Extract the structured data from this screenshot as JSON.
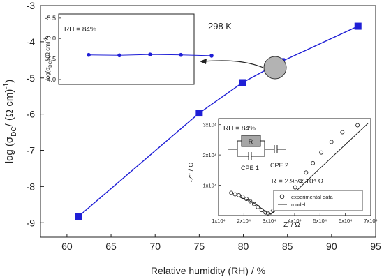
{
  "chart_data": [
    {
      "id": "main",
      "type": "line",
      "xlabel": "Relative humidity (RH) / %",
      "ylabel_parts": [
        "log (σ",
        "DC",
        "/ (Ω cm)",
        "-1",
        ")"
      ],
      "xlim": [
        57,
        95
      ],
      "ylim": [
        -9.4,
        -3
      ],
      "xticks": [
        60,
        65,
        70,
        75,
        80,
        85,
        90,
        95
      ],
      "yticks": [
        -9,
        -8,
        -7,
        -6,
        -5,
        -4,
        -3
      ],
      "series": [
        {
          "x": [
            61.3,
            75.0,
            79.9,
            84.3,
            93.0
          ],
          "y": [
            -8.83,
            -5.97,
            -5.13,
            -4.55,
            -3.57
          ],
          "color": "#1f1fd6"
        }
      ],
      "annotation": "298 K"
    },
    {
      "id": "inset_top",
      "type": "line",
      "ylabel_parts": [
        "log(σ",
        "DC",
        "/ (Ω cm)",
        "-1",
        ")"
      ],
      "note": "RH = 84%",
      "yticks": [
        "-5.5",
        "-5.0",
        "-4.5",
        "-4.0"
      ],
      "y_tick_values": [
        -5.5,
        -5.0,
        -4.5,
        -4.0
      ],
      "ylim": [
        -5.6,
        -3.88
      ],
      "reversed_y": true,
      "series": [
        {
          "x": [
            1,
            2,
            3,
            4,
            5
          ],
          "y": [
            -4.6,
            -4.59,
            -4.61,
            -4.6,
            -4.58
          ],
          "color": "#1f1fd6"
        }
      ]
    },
    {
      "id": "inset_nyquist",
      "type": "scatter",
      "xlabel": "Z' / Ω",
      "ylabel": "-Z'' / Ω",
      "note": "RH = 84%",
      "xlim": [
        1,
        7
      ],
      "ylim": [
        0,
        3.2
      ],
      "xticks": [
        "1x10⁴",
        "2x10⁴",
        "3x10⁴",
        "4x10⁴",
        "5x10⁴",
        "6x10⁴",
        "7x10⁴"
      ],
      "xtick_values": [
        1,
        2,
        3,
        4,
        5,
        6,
        7
      ],
      "yticks": [
        "1x10⁴",
        "2x10⁴",
        "3x10⁴"
      ],
      "ytick_values": [
        1,
        2,
        3
      ],
      "units_exponent": "×10⁴ Ω",
      "experimental": {
        "x": [
          1.5,
          1.65,
          1.8,
          1.95,
          2.1,
          2.25,
          2.4,
          2.55,
          2.7,
          2.85,
          2.95,
          3.05,
          3.15,
          3.25,
          3.38,
          3.5,
          3.62,
          3.75,
          3.88,
          4.02,
          4.22,
          4.45,
          4.72,
          5.05,
          5.45,
          5.88,
          6.48
        ],
        "y": [
          0.75,
          0.7,
          0.67,
          0.62,
          0.55,
          0.47,
          0.38,
          0.28,
          0.18,
          0.1,
          0.08,
          0.1,
          0.16,
          0.23,
          0.31,
          0.4,
          0.5,
          0.62,
          0.76,
          0.93,
          1.15,
          1.42,
          1.73,
          2.08,
          2.43,
          2.75,
          2.98
        ]
      },
      "model": {
        "x": [
          1.85,
          2.2,
          2.5,
          2.8,
          2.95,
          3.05,
          3.3,
          3.7,
          4.2,
          4.8,
          5.5,
          6.2,
          6.9
        ],
        "y": [
          0.6,
          0.5,
          0.36,
          0.17,
          0.08,
          0.06,
          0.2,
          0.52,
          0.92,
          1.4,
          1.95,
          2.5,
          3.05
        ]
      },
      "circuit": {
        "r_label": "R",
        "cpe1_label": "CPE 1",
        "cpe2_label": "CPE 2"
      },
      "fit_result": "R = 2.95 x 10⁴ Ω",
      "legend": [
        {
          "label": "experimental data",
          "marker": "circle"
        },
        {
          "label": "model",
          "marker": "line"
        }
      ]
    }
  ]
}
